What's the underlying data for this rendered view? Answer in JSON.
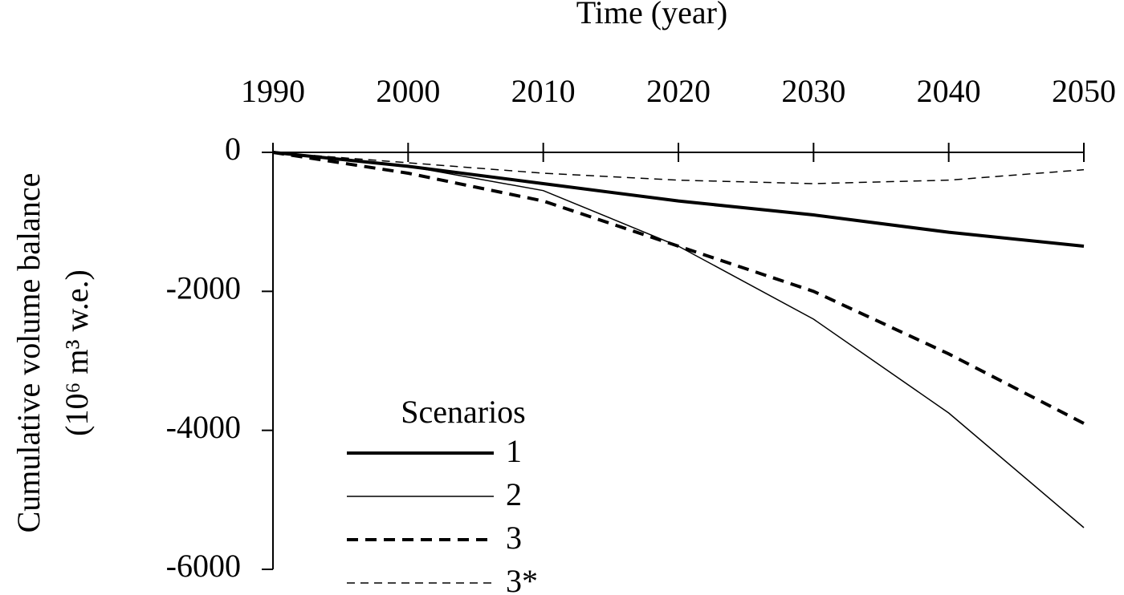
{
  "chart_data": {
    "type": "line",
    "x_label": "Time (year)",
    "y_label": "Cumulative volume balance",
    "y_label_units": "(10⁶ m³ w.e.)",
    "legend_title": "Scenarios",
    "x": [
      1990,
      2000,
      2010,
      2020,
      2030,
      2040,
      2050
    ],
    "xlim": [
      1990,
      2050
    ],
    "xticks": [
      1990,
      2000,
      2010,
      2020,
      2030,
      2040,
      2050
    ],
    "ylim": [
      -6000,
      0
    ],
    "yticks": [
      0,
      -2000,
      -4000,
      -6000
    ],
    "series": [
      {
        "name": "1",
        "color": "#000000",
        "line_width": 4,
        "dashed": false,
        "values": [
          0,
          -200,
          -450,
          -700,
          -900,
          -1150,
          -1350
        ]
      },
      {
        "name": "2",
        "color": "#000000",
        "line_width": 1.5,
        "dashed": false,
        "values": [
          0,
          -200,
          -550,
          -1350,
          -2400,
          -3750,
          -5400
        ]
      },
      {
        "name": "3",
        "color": "#000000",
        "line_width": 4,
        "dashed": true,
        "values": [
          0,
          -300,
          -700,
          -1350,
          -2000,
          -2900,
          -3900
        ]
      },
      {
        "name": "3*",
        "color": "#000000",
        "line_width": 1.5,
        "dashed": true,
        "values": [
          0,
          -150,
          -300,
          -400,
          -450,
          -400,
          -250
        ]
      }
    ]
  }
}
